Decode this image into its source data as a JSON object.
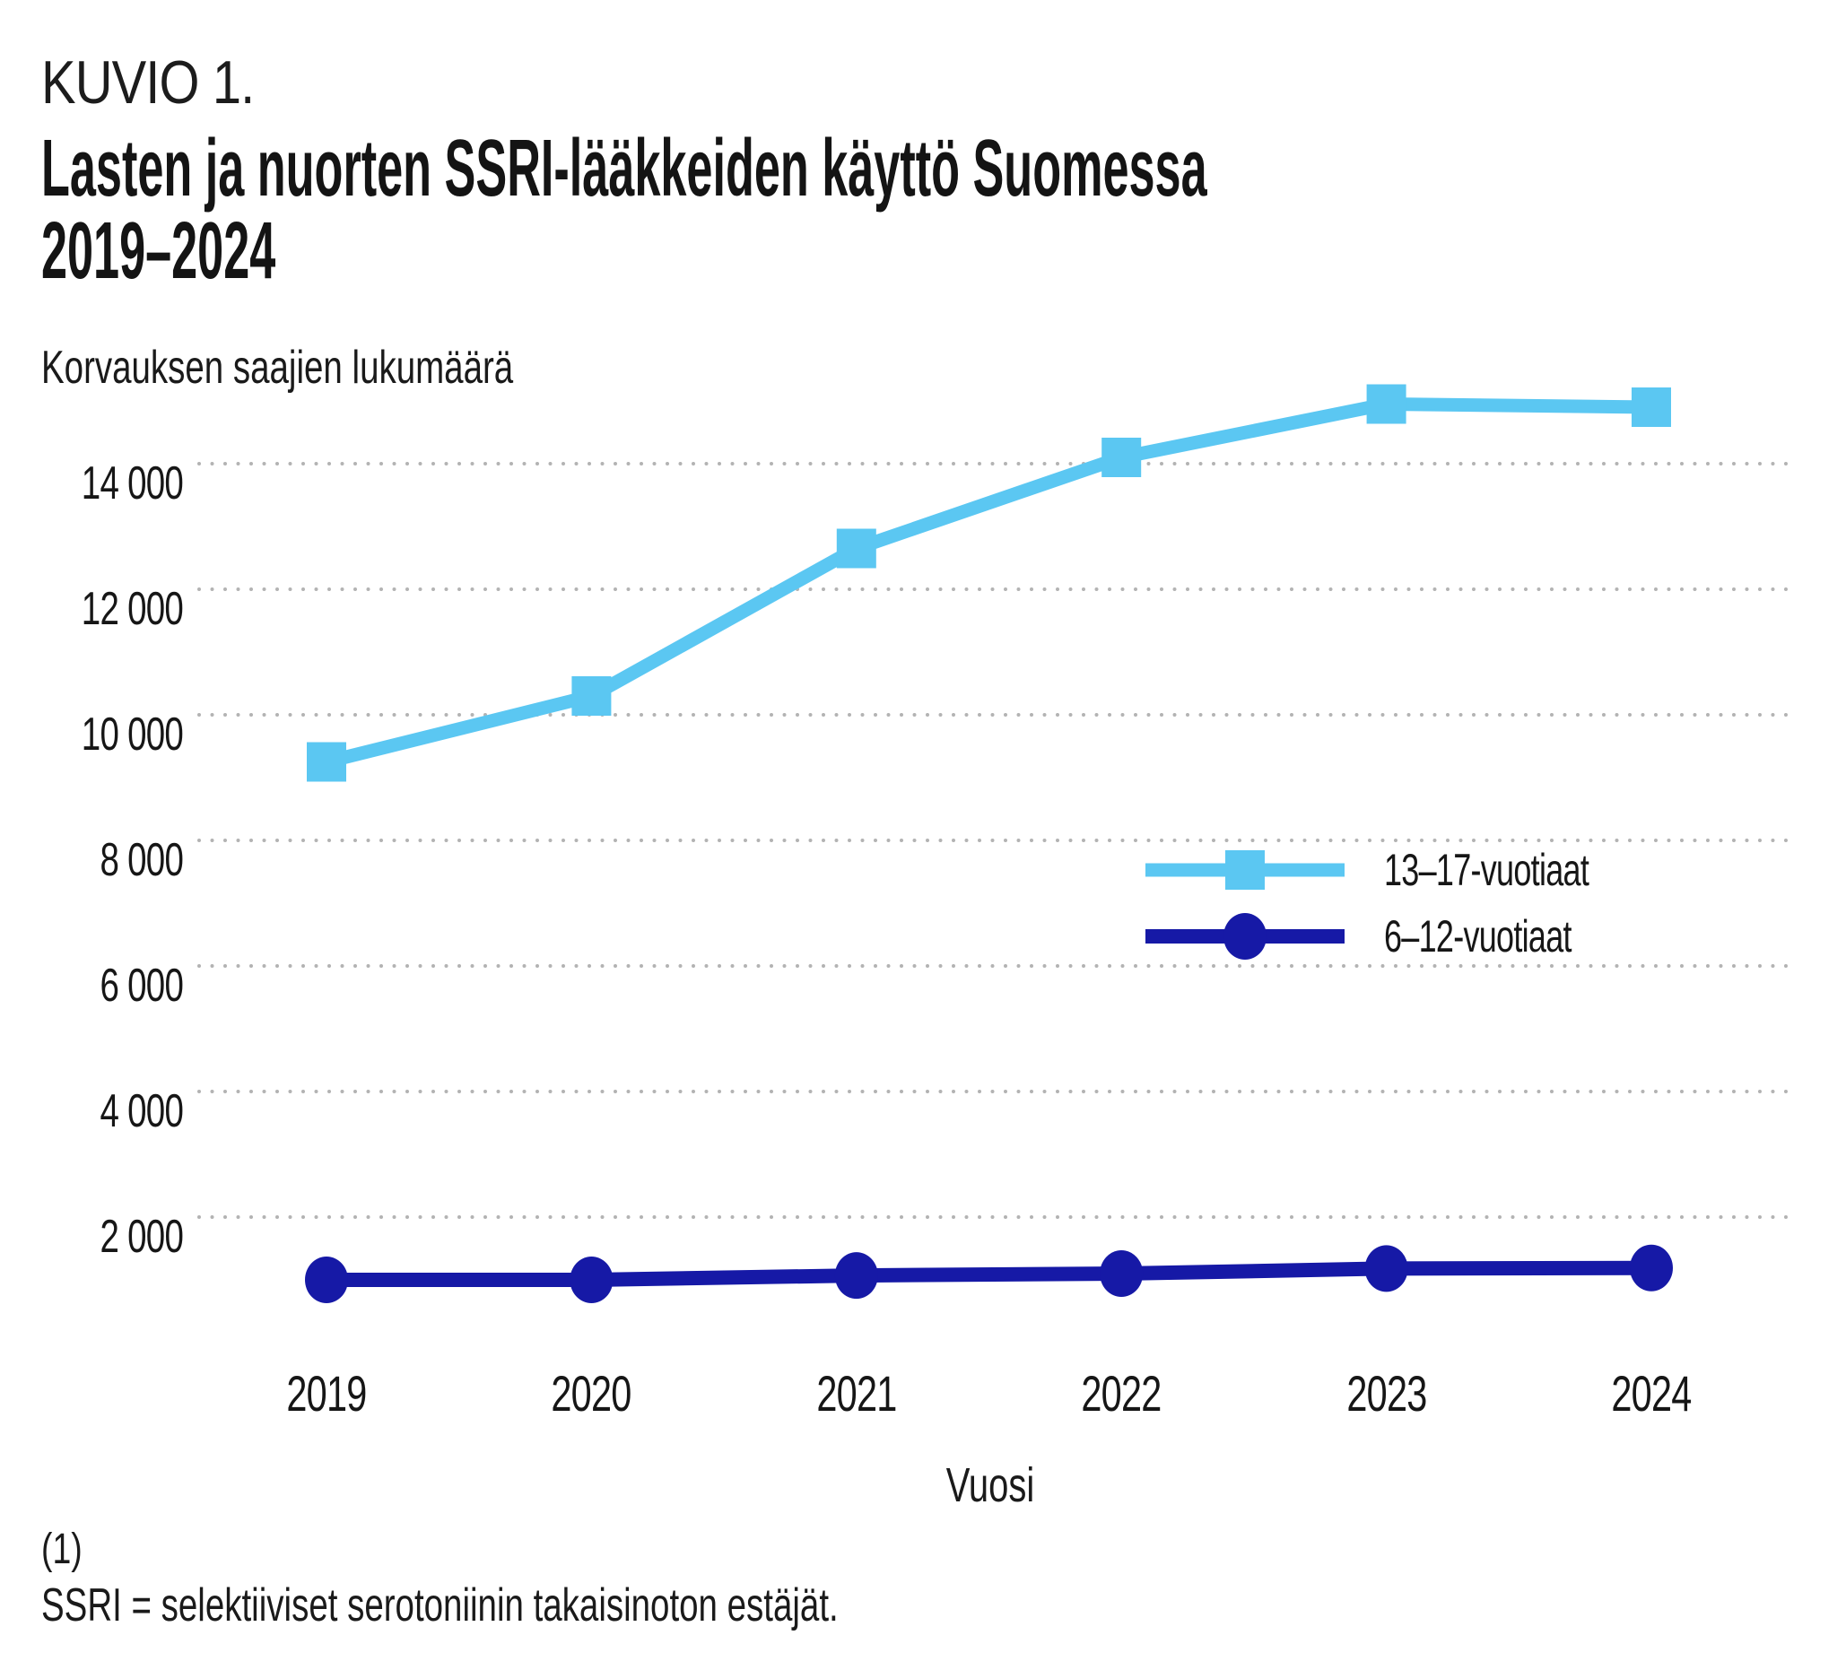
{
  "header": {
    "figure_label": "KUVIO 1.",
    "title_line1": "Lasten ja nuorten SSRI-lääkkeiden käyttö Suomessa",
    "title_line2": "2019–2024"
  },
  "chart_data": {
    "type": "line",
    "title": "Lasten ja nuorten SSRI-lääkkeiden käyttö Suomessa 2019–2024",
    "ylabel": "Korvauksen saajien lukumäärä",
    "xlabel": "Vuosi",
    "categories": [
      "2019",
      "2020",
      "2021",
      "2022",
      "2023",
      "2024"
    ],
    "series": [
      {
        "name": "13–17-vuotiaat",
        "marker": "square",
        "color": "#5BC7F2",
        "values": [
          9250,
          10300,
          12650,
          14100,
          14950,
          14900
        ]
      },
      {
        "name": "6–12-vuotiaat",
        "marker": "circle",
        "color": "#1619A6",
        "values": [
          1000,
          1000,
          1070,
          1100,
          1180,
          1190
        ]
      }
    ],
    "y_ticks": [
      2000,
      4000,
      6000,
      8000,
      10000,
      12000,
      14000
    ],
    "y_tick_labels": [
      "2 000",
      "4 000",
      "6 000",
      "8 000",
      "10 000",
      "12 000",
      "14 000"
    ],
    "ylim": [
      0,
      15600
    ],
    "grid": "horizontal-dotted",
    "grid_color": "#b3b3b3",
    "legend_position": "inside-right"
  },
  "footnote": {
    "marker": "(1)",
    "text": "SSRI = selektiiviset serotoniinin takaisinoton estäjät."
  }
}
